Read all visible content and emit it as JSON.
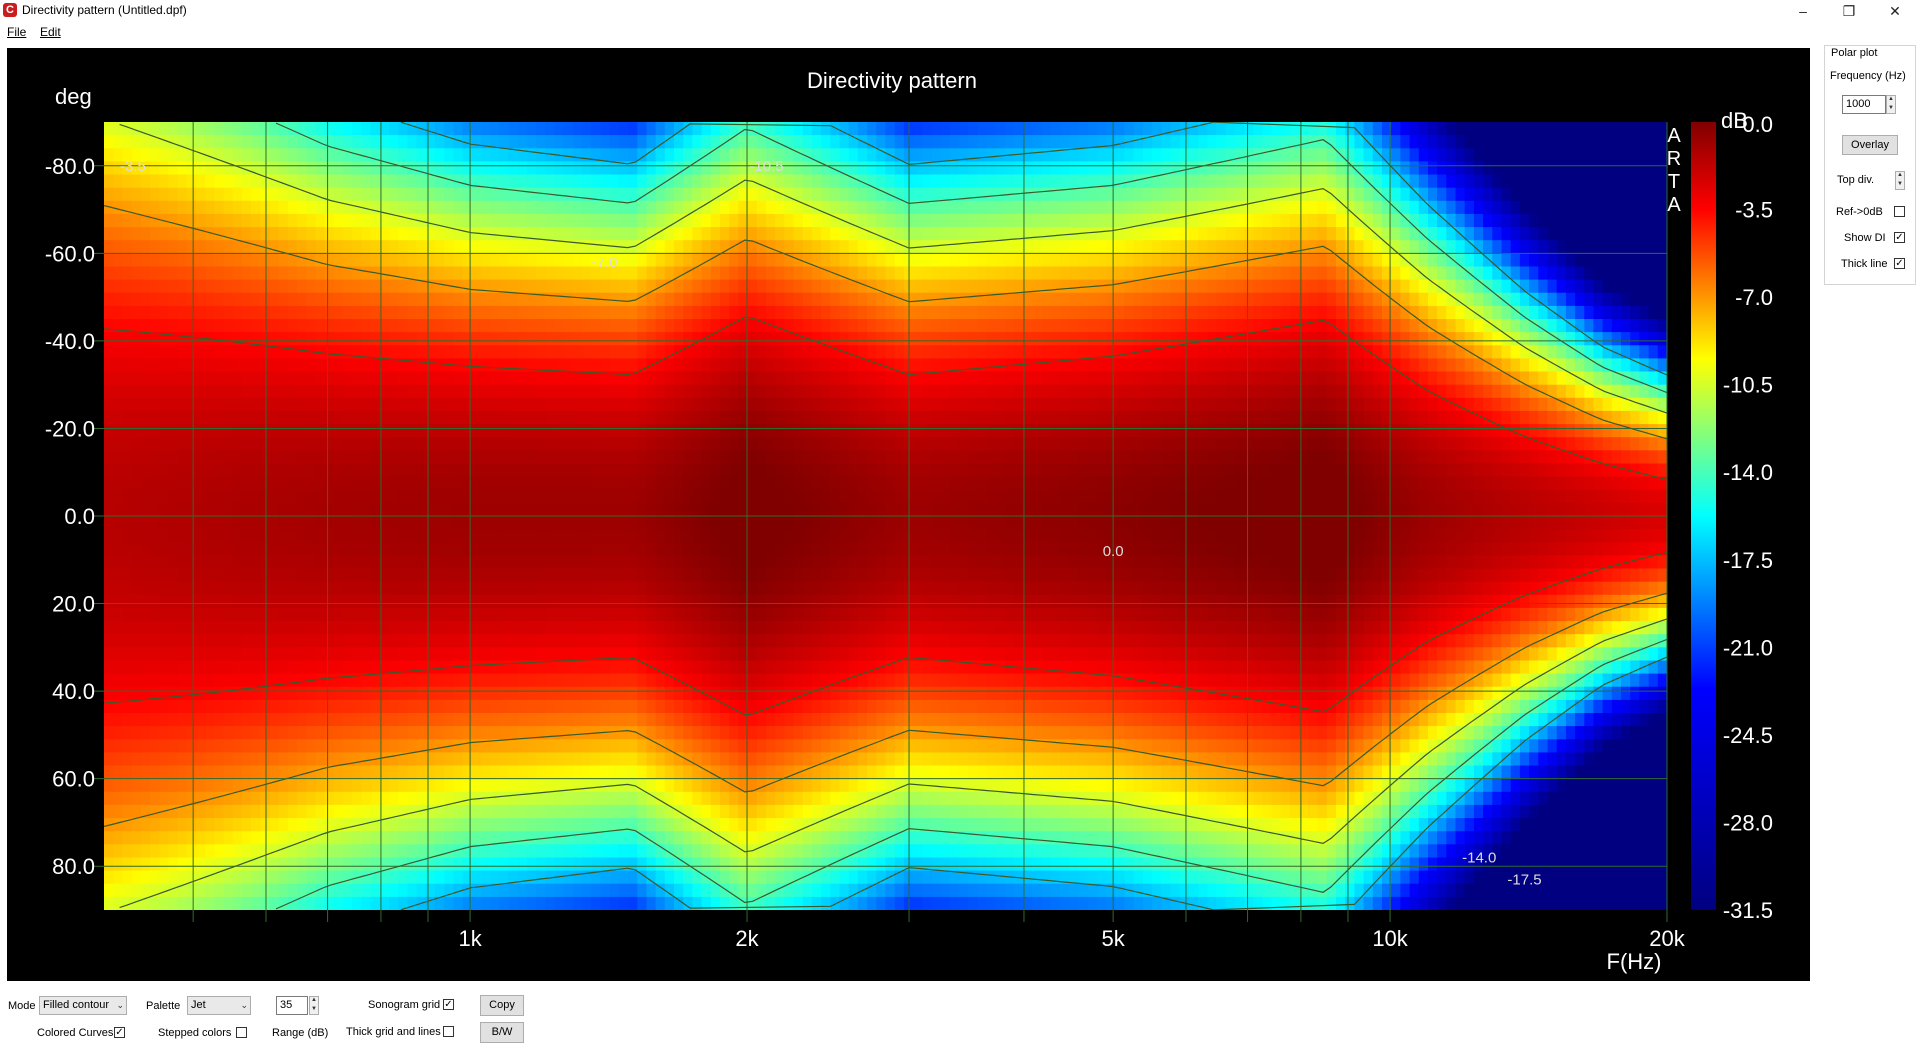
{
  "window": {
    "title": "Directivity pattern (Untitled.dpf)",
    "minimize_icon": "minimize-icon",
    "restore_icon": "restore-icon",
    "close_icon": "close-icon"
  },
  "menu": {
    "file": "File",
    "edit": "Edit"
  },
  "side_panel": {
    "group_label": "Polar plot",
    "frequency_label": "Frequency (Hz)",
    "frequency_value": "1000",
    "overlay_label": "Overlay",
    "top_div_label": "Top div.",
    "ref_label": "Ref->0dB",
    "ref_checked": false,
    "show_di_label": "Show DI",
    "show_di_checked": true,
    "thick_line_label": "Thick line",
    "thick_line_checked": true
  },
  "bottom_panel": {
    "mode_label": "Mode",
    "mode_value": "Filled contour",
    "palette_label": "Palette",
    "palette_value": "Jet",
    "range_value": "35",
    "range_label": "Range (dB)",
    "sonogram_grid_label": "Sonogram grid",
    "sonogram_grid_checked": true,
    "thick_grid_label": "Thick grid and  lines",
    "thick_grid_checked": false,
    "copy_label": "Copy",
    "bw_label": "B/W",
    "colored_curves_label": "Colored Curves",
    "colored_curves_checked": true,
    "stepped_colors_label": "Stepped colors",
    "stepped_colors_checked": false
  },
  "colors": {
    "background": "#000000",
    "grid": "#2e6b2e",
    "contour": "#3a5a2a",
    "text": "#ffffff"
  },
  "chart_data": {
    "type": "heatmap",
    "title": "Directivity pattern",
    "ylabel": "deg",
    "xlabel": "F(Hz)",
    "watermark": "ARTA",
    "colorbar_label": "dB",
    "x_scale": "log",
    "xlim": [
      400,
      20000
    ],
    "ylim": [
      -90,
      90
    ],
    "y_inverted": true,
    "x_ticks": [
      1000,
      2000,
      5000,
      10000,
      20000
    ],
    "x_tick_labels": [
      "1k",
      "2k",
      "5k",
      "10k",
      "20k"
    ],
    "y_ticks": [
      -80,
      -60,
      -40,
      -20,
      0,
      20,
      40,
      60,
      80
    ],
    "y_tick_labels": [
      "-80.0",
      "-60.0",
      "-40.0",
      "-20.0",
      "0.0",
      "20.0",
      "40.0",
      "60.0",
      "80.0"
    ],
    "colorbar_range": [
      -31.5,
      0
    ],
    "colorbar_ticks": [
      0.0,
      -3.5,
      -7.0,
      -10.5,
      -14.0,
      -17.5,
      -21.0,
      -24.5,
      -28.0,
      -31.5
    ],
    "colorbar_tick_labels": [
      "0.0",
      "-3.5",
      "-7.0",
      "-10.5",
      "-14.0",
      "-17.5",
      "-21.0",
      "-24.5",
      "-28.0",
      "-31.5"
    ],
    "palette": "Jet",
    "grid_x": [
      500,
      600,
      700,
      800,
      900,
      1000,
      2000,
      3000,
      4000,
      5000,
      6000,
      7000,
      8000,
      9000,
      10000,
      20000
    ],
    "grid_y": [
      -80,
      -60,
      -40,
      -20,
      0,
      20,
      40,
      60,
      80
    ],
    "contour_labels": [
      {
        "text": "-3.5",
        "f": 430,
        "deg": -80
      },
      {
        "text": "-10.5",
        "f": 2100,
        "deg": -80
      },
      {
        "text": "-7.0",
        "f": 1400,
        "deg": -58
      },
      {
        "text": "0.0",
        "f": 5000,
        "deg": 8
      },
      {
        "text": "-14.0",
        "f": 12500,
        "deg": 78
      },
      {
        "text": "-17.5",
        "f": 14000,
        "deg": 83
      }
    ],
    "level_profile": {
      "freq": [
        400,
        700,
        1000,
        1500,
        2000,
        3000,
        5000,
        8500,
        11000,
        14000,
        17000,
        20000
      ],
      "half_width_deg": [
        80,
        62,
        55,
        52,
        62,
        52,
        54,
        60,
        46,
        34,
        26,
        22
      ],
      "on_axis_db": [
        -1.5,
        -1.0,
        -0.8,
        -0.8,
        0.3,
        -0.8,
        -0.3,
        0.4,
        -0.8,
        -1.5,
        -2.0,
        -2.5
      ]
    }
  }
}
